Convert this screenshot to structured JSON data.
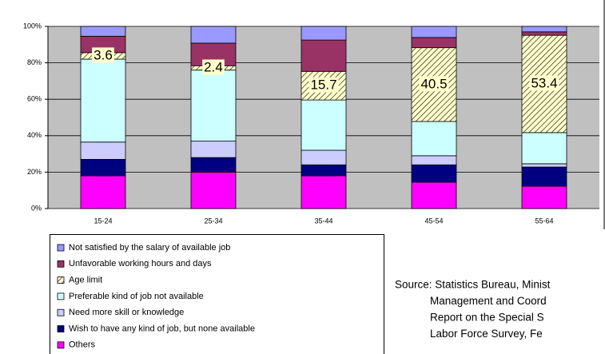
{
  "chart_data": {
    "type": "stacked_bar",
    "categories": [
      "15-24",
      "25-34",
      "35-44",
      "45-54",
      "55-64"
    ],
    "series": [
      {
        "name": "Others",
        "color": "#ff00ff",
        "values": [
          18,
          20,
          18,
          14.5,
          12.3
        ]
      },
      {
        "name": "Wish to have any kind of job, but none available",
        "color": "#000080",
        "values": [
          9,
          8,
          6,
          9.5,
          10.5
        ]
      },
      {
        "name": "Need more skill or knowledge",
        "color": "#ccccff",
        "values": [
          9.5,
          9,
          8,
          5,
          1.8
        ]
      },
      {
        "name": "Preferable kind of job not available",
        "color": "#ccffff",
        "values": [
          45.5,
          39,
          27.6,
          18.8,
          17.1
        ]
      },
      {
        "name": "Age limit",
        "color": "#ffffcc",
        "hatch": true,
        "data_labels": true,
        "values": [
          3.6,
          2.4,
          15.7,
          40.5,
          53.4
        ]
      },
      {
        "name": "Unfavorable working hours and days",
        "color": "#993366",
        "values": [
          9,
          12.4,
          17.2,
          5.6,
          1.9
        ]
      },
      {
        "name": "Not satisfied by the salary of available job",
        "color": "#9999ff",
        "values": [
          5.4,
          9.2,
          7.5,
          6.1,
          3
        ]
      }
    ],
    "ylim": [
      0,
      100
    ],
    "yticks": [
      {
        "value": 0,
        "label": "0%"
      },
      {
        "value": 20,
        "label": "20%"
      },
      {
        "value": 40,
        "label": "40%"
      },
      {
        "value": 60,
        "label": "60%"
      },
      {
        "value": 80,
        "label": "80%"
      },
      {
        "value": 100,
        "label": "100%"
      }
    ],
    "grid": true,
    "source": [
      "Source: Statistics Bureau, Minist",
      "Management and Coord",
      "Report on the Special S",
      "Labor Force Survey, Fe"
    ]
  }
}
